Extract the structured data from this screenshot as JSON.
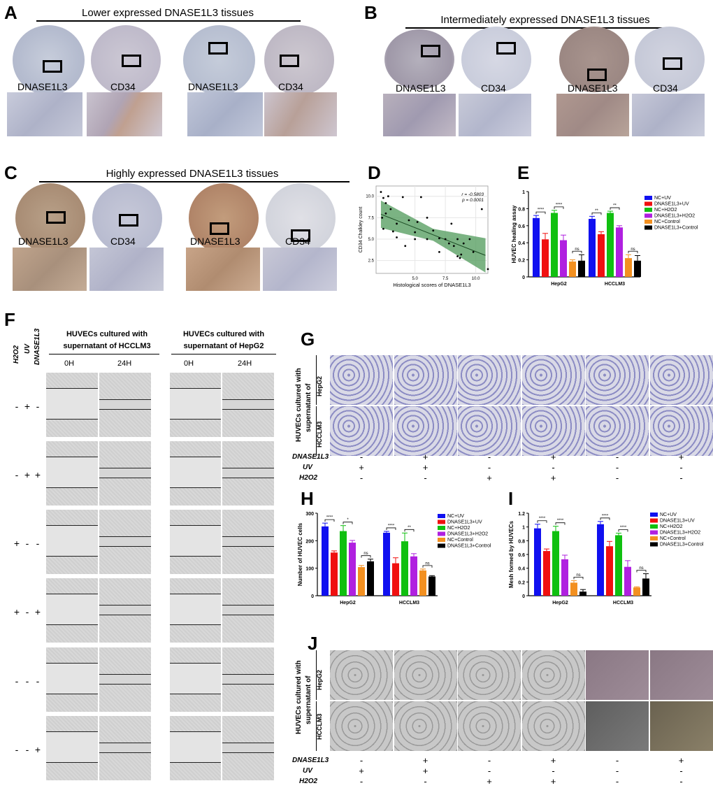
{
  "panels": {
    "A": {
      "letter": "A",
      "title": "Lower expressed DNASE1L3 tissues",
      "labels": [
        "DNASE1L3",
        "CD34",
        "DNASE1L3",
        "CD34"
      ]
    },
    "B": {
      "letter": "B",
      "title": "Intermediately expressed DNASE1L3 tissues",
      "labels": [
        "DNASE1L3",
        "CD34",
        "DNASE1L3",
        "CD34"
      ]
    },
    "C": {
      "letter": "C",
      "title": "Highly expressed DNASE1L3 tissues",
      "labels": [
        "DNASE1L3",
        "CD34",
        "DNASE1L3",
        "CD34"
      ]
    },
    "F": {
      "letter": "F",
      "col_headers": [
        "H2O2",
        "UV",
        "DNASE1L3"
      ],
      "group1": "HUVECs cultured with supernatant of HCCLM3",
      "group1_line1": "HUVECs cultured with",
      "group1_line2": "supernatant of HCCLM3",
      "group2_line1": "HUVECs cultured with",
      "group2_line2": "supernatant of HepG2",
      "times": [
        "0H",
        "24H",
        "0H",
        "24H"
      ],
      "rows": [
        [
          "-",
          "+",
          "-"
        ],
        [
          "-",
          "+",
          "+"
        ],
        [
          "+",
          "-",
          "-"
        ],
        [
          "+",
          "-",
          "+"
        ],
        [
          "-",
          "-",
          "-"
        ],
        [
          "-",
          "-",
          "+"
        ]
      ]
    },
    "G": {
      "letter": "G",
      "side_line1": "HUVECs cultured with",
      "side_line2": "supernatant of",
      "rows": [
        "HepG2",
        "HCCLM3"
      ],
      "factors": [
        {
          "name": "DNASE1L3",
          "signs": [
            "-",
            "+",
            "-",
            "+",
            "-",
            "+"
          ]
        },
        {
          "name": "UV",
          "signs": [
            "+",
            "+",
            "-",
            "-",
            "-",
            "-"
          ]
        },
        {
          "name": "H2O2",
          "signs": [
            "-",
            "-",
            "+",
            "+",
            "-",
            "-"
          ]
        }
      ]
    },
    "J": {
      "letter": "J",
      "side_line1": "HUVECs cultured with",
      "side_line2": "supernatant of",
      "rows": [
        "HepG2",
        "HCCLM3"
      ],
      "factors": [
        {
          "name": "DNASE1L3",
          "signs": [
            "-",
            "+",
            "-",
            "+",
            "-",
            "+"
          ]
        },
        {
          "name": "UV",
          "signs": [
            "+",
            "+",
            "-",
            "-",
            "-",
            "-"
          ]
        },
        {
          "name": "H2O2",
          "signs": [
            "-",
            "-",
            "+",
            "+",
            "-",
            "-"
          ]
        }
      ]
    },
    "D": {
      "letter": "D"
    },
    "E": {
      "letter": "E"
    },
    "H": {
      "letter": "H"
    },
    "I": {
      "letter": "I"
    }
  },
  "colors": {
    "NC+UV": "#1010f0",
    "DNASE1L3+UV": "#f01010",
    "NC+H2O2": "#10c010",
    "DNASE1L3+H2O2": "#b020e0",
    "NC+Control": "#f39020",
    "DNASE1L3+Control": "#000000"
  },
  "chart_data": [
    {
      "id": "D",
      "type": "scatter",
      "xlabel": "Histological scores of DNASE1L3",
      "ylabel": "CD34 Chalkley count",
      "xticks": [
        5.0,
        7.5,
        10.0
      ],
      "yticks": [
        2.5,
        5.0,
        7.5,
        10.0
      ],
      "xlim": [
        1.8,
        11.0
      ],
      "ylim": [
        1.0,
        11.2
      ],
      "annotation_r": "r = -0.5803",
      "annotation_p": "p = 0.0001",
      "points": [
        [
          2.2,
          10.5
        ],
        [
          2.4,
          9.8
        ],
        [
          2.6,
          9.2
        ],
        [
          2.3,
          7.5
        ],
        [
          2.6,
          8.0
        ],
        [
          3.0,
          8.5
        ],
        [
          3.5,
          6.8
        ],
        [
          3.2,
          5.9
        ],
        [
          2.4,
          6.2
        ],
        [
          3.5,
          5.2
        ],
        [
          4.0,
          9.9
        ],
        [
          2.8,
          10.0
        ],
        [
          4.5,
          7.2
        ],
        [
          5.0,
          5.8
        ],
        [
          5.5,
          9.9
        ],
        [
          5.2,
          7.0
        ],
        [
          5.0,
          5.0
        ],
        [
          6.0,
          7.5
        ],
        [
          6.5,
          6.0
        ],
        [
          7.0,
          5.1
        ],
        [
          7.0,
          3.5
        ],
        [
          7.5,
          5.0
        ],
        [
          7.8,
          4.5
        ],
        [
          8.0,
          6.8
        ],
        [
          8.2,
          4.2
        ],
        [
          8.5,
          5.0
        ],
        [
          8.8,
          3.2
        ],
        [
          8.7,
          2.8
        ],
        [
          9.0,
          4.5
        ],
        [
          8.5,
          3.0
        ],
        [
          9.5,
          5.0
        ],
        [
          9.8,
          3.5
        ],
        [
          10.5,
          8.5
        ],
        [
          11.0,
          1.5
        ],
        [
          4.2,
          4.2
        ],
        [
          6.0,
          5.0
        ]
      ],
      "fit": {
        "x0": 2.2,
        "y0": 7.9,
        "x1": 10.8,
        "y1": 3.1
      }
    },
    {
      "id": "E",
      "type": "bar",
      "ylabel": "HUVEC healing assay",
      "ylim": [
        0,
        1.0
      ],
      "yticks": [
        0,
        0.2,
        0.4,
        0.6,
        0.8,
        1.0
      ],
      "categories": [
        "HepG2",
        "HCCLM3"
      ],
      "series": [
        {
          "name": "NC+UV",
          "values": [
            0.69,
            0.68
          ],
          "err": [
            0.03,
            0.03
          ]
        },
        {
          "name": "DNASE1L3+UV",
          "values": [
            0.44,
            0.5
          ],
          "err": [
            0.07,
            0.03
          ]
        },
        {
          "name": "NC+H2O2",
          "values": [
            0.75,
            0.75
          ],
          "err": [
            0.03,
            0.02
          ]
        },
        {
          "name": "DNASE1L3+H2O2",
          "values": [
            0.43,
            0.58
          ],
          "err": [
            0.06,
            0.02
          ]
        },
        {
          "name": "NC+Control",
          "values": [
            0.18,
            0.22
          ],
          "err": [
            0.02,
            0.04
          ]
        },
        {
          "name": "DNASE1L3+Control",
          "values": [
            0.19,
            0.19
          ],
          "err": [
            0.07,
            0.06
          ]
        }
      ],
      "sig": [
        [
          "****",
          "**"
        ],
        [
          "****",
          "**"
        ],
        [
          "ns",
          "ns"
        ]
      ]
    },
    {
      "id": "H",
      "type": "bar",
      "ylabel": "Number of  HUVEC cells",
      "ylim": [
        0,
        300
      ],
      "yticks": [
        0,
        100,
        200,
        300
      ],
      "categories": [
        "HepG2",
        "HCCLM3"
      ],
      "series": [
        {
          "name": "NC+UV",
          "values": [
            252,
            229
          ],
          "err": [
            12,
            5
          ]
        },
        {
          "name": "DNASE1L3+UV",
          "values": [
            157,
            118
          ],
          "err": [
            6,
            20
          ]
        },
        {
          "name": "NC+H2O2",
          "values": [
            235,
            198
          ],
          "err": [
            20,
            30
          ]
        },
        {
          "name": "DNASE1L3+H2O2",
          "values": [
            193,
            143
          ],
          "err": [
            8,
            10
          ]
        },
        {
          "name": "NC+Control",
          "values": [
            104,
            92
          ],
          "err": [
            6,
            5
          ]
        },
        {
          "name": "DNASE1L3+Control",
          "values": [
            125,
            70
          ],
          "err": [
            8,
            3
          ]
        }
      ],
      "sig": [
        [
          "****",
          "****"
        ],
        [
          "*",
          "**"
        ],
        [
          "ns",
          "ns"
        ]
      ]
    },
    {
      "id": "I",
      "type": "bar",
      "ylabel": "Mesh formed by HUVECs",
      "ylim": [
        0,
        1.2
      ],
      "yticks": [
        0,
        0.2,
        0.4,
        0.6,
        0.8,
        1.0,
        1.2
      ],
      "categories": [
        "HepG2",
        "HCCLM3"
      ],
      "series": [
        {
          "name": "NC+UV",
          "values": [
            0.98,
            1.04
          ],
          "err": [
            0.06,
            0.04
          ]
        },
        {
          "name": "DNASE1L3+UV",
          "values": [
            0.65,
            0.72
          ],
          "err": [
            0.03,
            0.07
          ]
        },
        {
          "name": "NC+H2O2",
          "values": [
            0.94,
            0.88
          ],
          "err": [
            0.07,
            0.03
          ]
        },
        {
          "name": "DNASE1L3+H2O2",
          "values": [
            0.53,
            0.42
          ],
          "err": [
            0.06,
            0.09
          ]
        },
        {
          "name": "NC+Control",
          "values": [
            0.19,
            0.12
          ],
          "err": [
            0.03,
            0.01
          ]
        },
        {
          "name": "DNASE1L3+Control",
          "values": [
            0.06,
            0.25
          ],
          "err": [
            0.03,
            0.07
          ]
        }
      ],
      "sig": [
        [
          "****",
          "****"
        ],
        [
          "****",
          "****"
        ],
        [
          "ns",
          "ns"
        ]
      ]
    }
  ]
}
